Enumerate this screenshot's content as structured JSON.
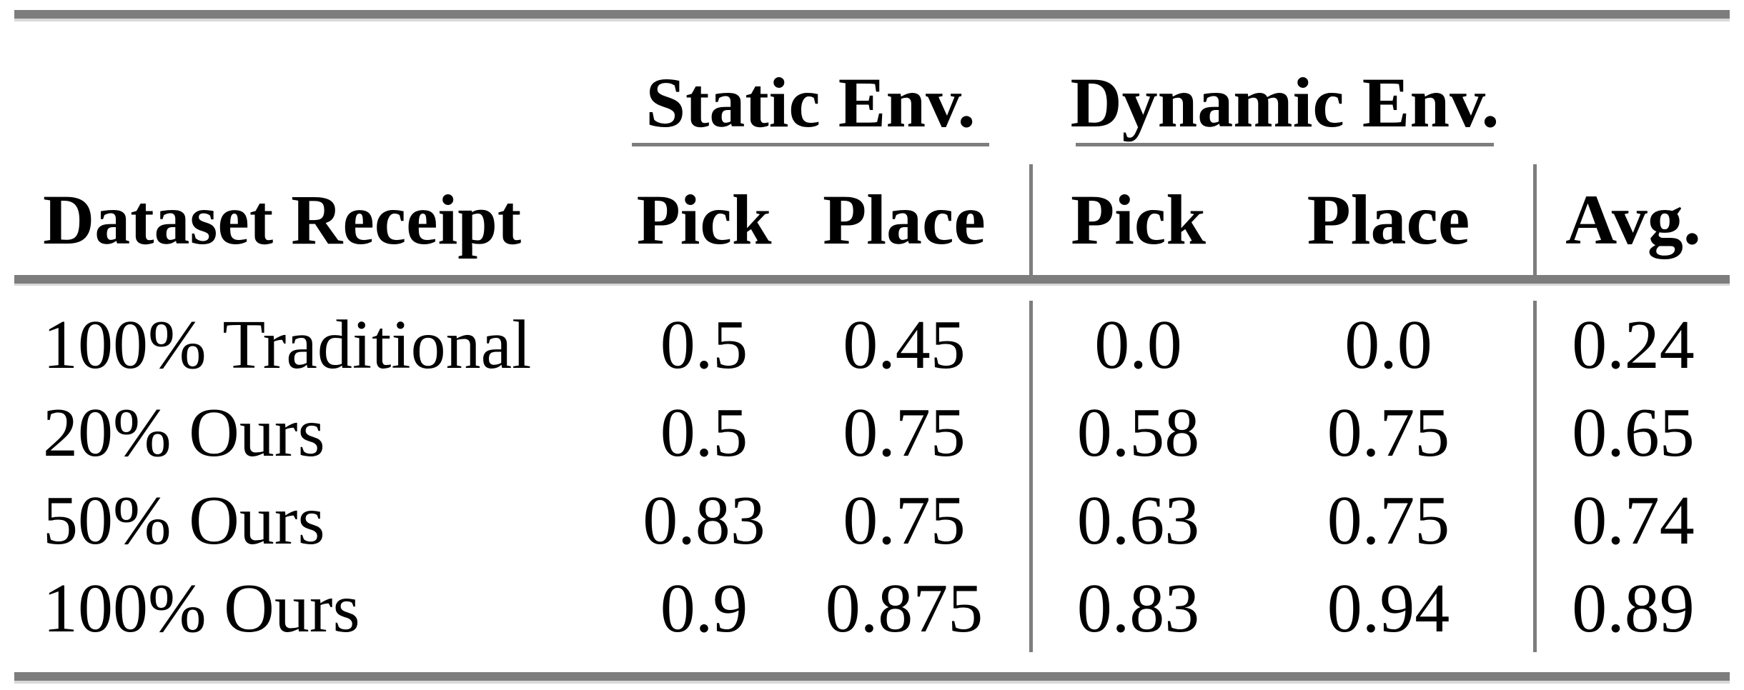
{
  "table": {
    "groups": [
      "Static Env.",
      "Dynamic Env."
    ],
    "columns": [
      "Dataset Receipt",
      "Pick",
      "Place",
      "Pick",
      "Place",
      "Avg."
    ],
    "rows": [
      {
        "label": "100% Traditional",
        "values": [
          "0.5",
          "0.45",
          "0.0",
          "0.0",
          "0.24"
        ]
      },
      {
        "label": "20% Ours",
        "values": [
          "0.5",
          "0.75",
          "0.58",
          "0.75",
          "0.65"
        ]
      },
      {
        "label": "50% Ours",
        "values": [
          "0.83",
          "0.75",
          "0.63",
          "0.75",
          "0.74"
        ]
      },
      {
        "label": "100% Ours",
        "values": [
          "0.9",
          "0.875",
          "0.83",
          "0.94",
          "0.89"
        ]
      }
    ],
    "colors": {
      "rule": "#7d7d7d",
      "rule_light": "#d8d8d8",
      "text": "#000000",
      "background": "#ffffff"
    }
  }
}
